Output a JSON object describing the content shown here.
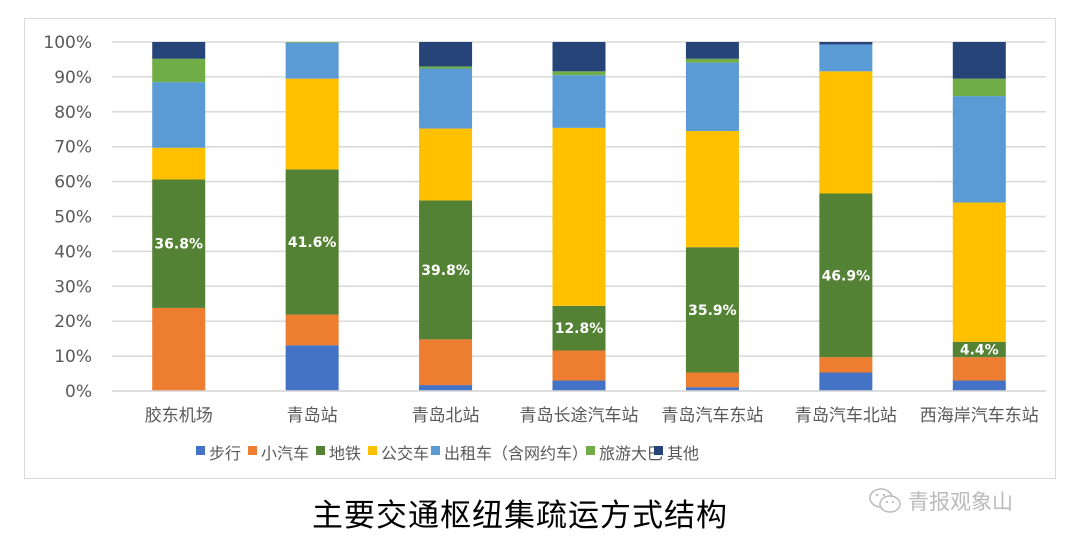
{
  "chart_data": {
    "type": "bar",
    "stacked": true,
    "title": "主要交通枢纽集疏运方式结构",
    "xlabel": "",
    "ylabel": "",
    "ylim": [
      0,
      100
    ],
    "yticks": [
      "0%",
      "10%",
      "20%",
      "30%",
      "40%",
      "50%",
      "60%",
      "70%",
      "80%",
      "90%",
      "100%"
    ],
    "grid": true,
    "legend_position": "bottom",
    "categories": [
      "胶东机场",
      "青岛站",
      "青岛北站",
      "青岛长途汽车站",
      "青岛汽车东站",
      "青岛汽车北站",
      "西海岸汽车东站"
    ],
    "series": [
      {
        "name": "步行",
        "color": "#4472c4",
        "values": [
          0,
          13.1,
          1.7,
          3.0,
          1.1,
          5.3,
          3.0
        ]
      },
      {
        "name": "小汽车",
        "color": "#ed7d31",
        "values": [
          23.8,
          8.8,
          13.1,
          8.6,
          4.2,
          4.4,
          6.7
        ]
      },
      {
        "name": "地铁",
        "color": "#548235",
        "values": [
          36.8,
          41.6,
          39.8,
          12.8,
          35.9,
          46.9,
          4.4
        ],
        "labels": [
          "36.8%",
          "41.6%",
          "39.8%",
          "12.8%",
          "35.9%",
          "46.9%",
          "4.4%"
        ]
      },
      {
        "name": "公交车",
        "color": "#ffc000",
        "values": [
          9.1,
          26.0,
          20.6,
          51.0,
          33.3,
          35.0,
          39.9
        ]
      },
      {
        "name": "出租车（含网约车）",
        "color": "#5b9bd5",
        "values": [
          18.8,
          10.3,
          17.2,
          15.1,
          19.6,
          7.7,
          30.5
        ]
      },
      {
        "name": "旅游大巴",
        "color": "#70ad47",
        "values": [
          6.7,
          0.2,
          0.6,
          1.1,
          1.1,
          0,
          5.0
        ]
      },
      {
        "name": "其他",
        "color": "#264478",
        "values": [
          4.8,
          0,
          7.0,
          8.4,
          4.8,
          0.7,
          10.5
        ]
      }
    ]
  },
  "watermark": "青报观象山"
}
